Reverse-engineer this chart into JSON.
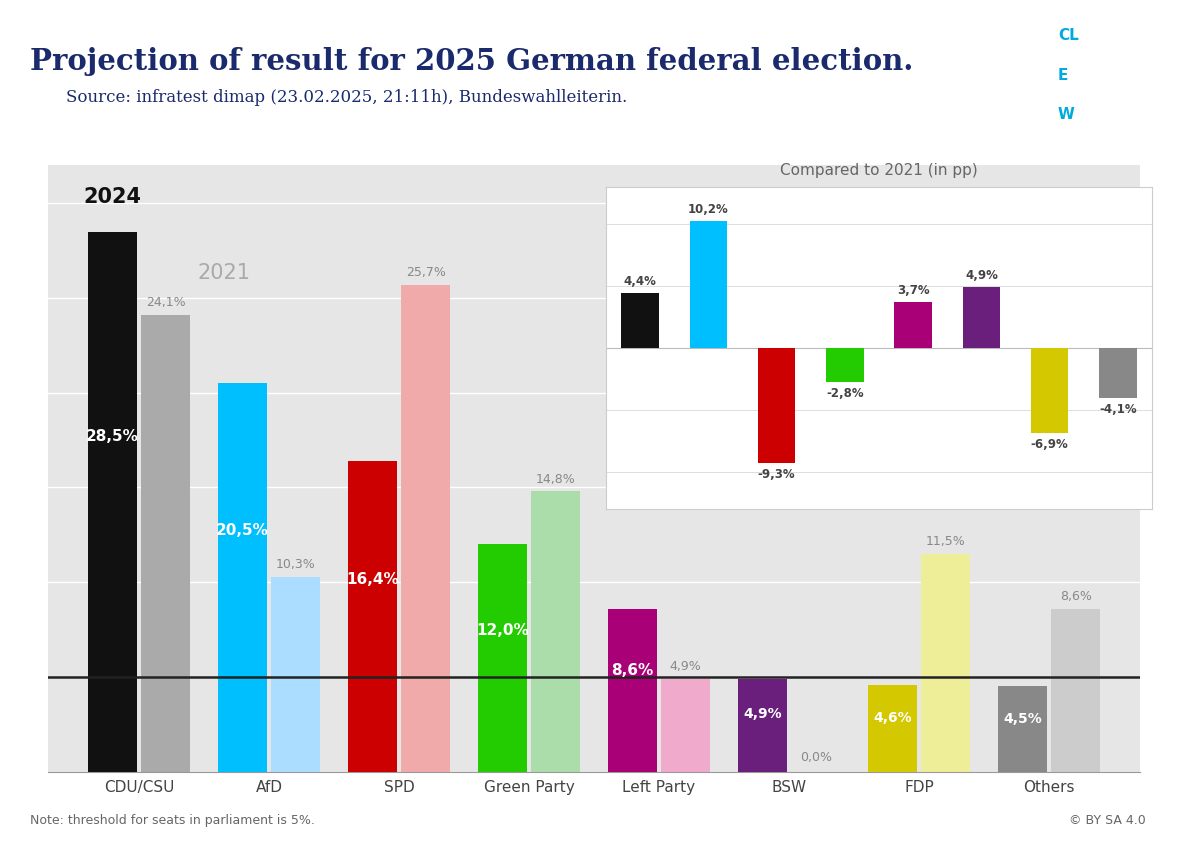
{
  "title": "Projection of result for 2025 German federal election.",
  "subtitle": "Source: infratest dimap (23.02.2025, 21:11h), Bundeswahlleiterin.",
  "parties": [
    "CDU/CSU",
    "AfD",
    "SPD",
    "Green Party",
    "Left Party",
    "BSW",
    "FDP",
    "Others"
  ],
  "values_2025": [
    28.5,
    20.5,
    16.4,
    12.0,
    8.6,
    4.9,
    4.6,
    4.5
  ],
  "values_2021": [
    24.1,
    10.3,
    25.7,
    14.8,
    4.9,
    0.0,
    11.5,
    8.6
  ],
  "colors_2025": [
    "#111111",
    "#00bfff",
    "#cc0000",
    "#22cc00",
    "#aa0077",
    "#6b1f7c",
    "#d4c800",
    "#888888"
  ],
  "colors_2021": [
    "#aaaaaa",
    "#aaddff",
    "#f0aaaa",
    "#aaddaa",
    "#f0aacc",
    "#ddbbee",
    "#eeee99",
    "#cccccc"
  ],
  "bar_labels_2025": [
    "28,5%",
    "20,5%",
    "16,4%",
    "12,0%",
    "8,6%",
    "4,9%",
    "4,6%",
    "4,5%"
  ],
  "bar_labels_2021": [
    "24,1%",
    "10,3%",
    "25,7%",
    "14,8%",
    "4,9%",
    "0,0%",
    "11,5%",
    "8,6%"
  ],
  "inset_changes": [
    4.4,
    10.2,
    -9.3,
    -2.8,
    3.7,
    4.9,
    -6.9,
    -4.1
  ],
  "inset_labels": [
    "4,4%",
    "10,2%",
    "-9,3%",
    "-2,8%",
    "3,7%",
    "4,9%",
    "-6,9%",
    "-4,1%"
  ],
  "inset_colors": [
    "#111111",
    "#00bfff",
    "#cc0000",
    "#22cc00",
    "#aa0077",
    "#6b1f7c",
    "#d4c800",
    "#888888"
  ],
  "threshold_line": 5.0,
  "bg_color": "#e8e8e8",
  "note": "Note: threshold for seats in parliament is 5%."
}
